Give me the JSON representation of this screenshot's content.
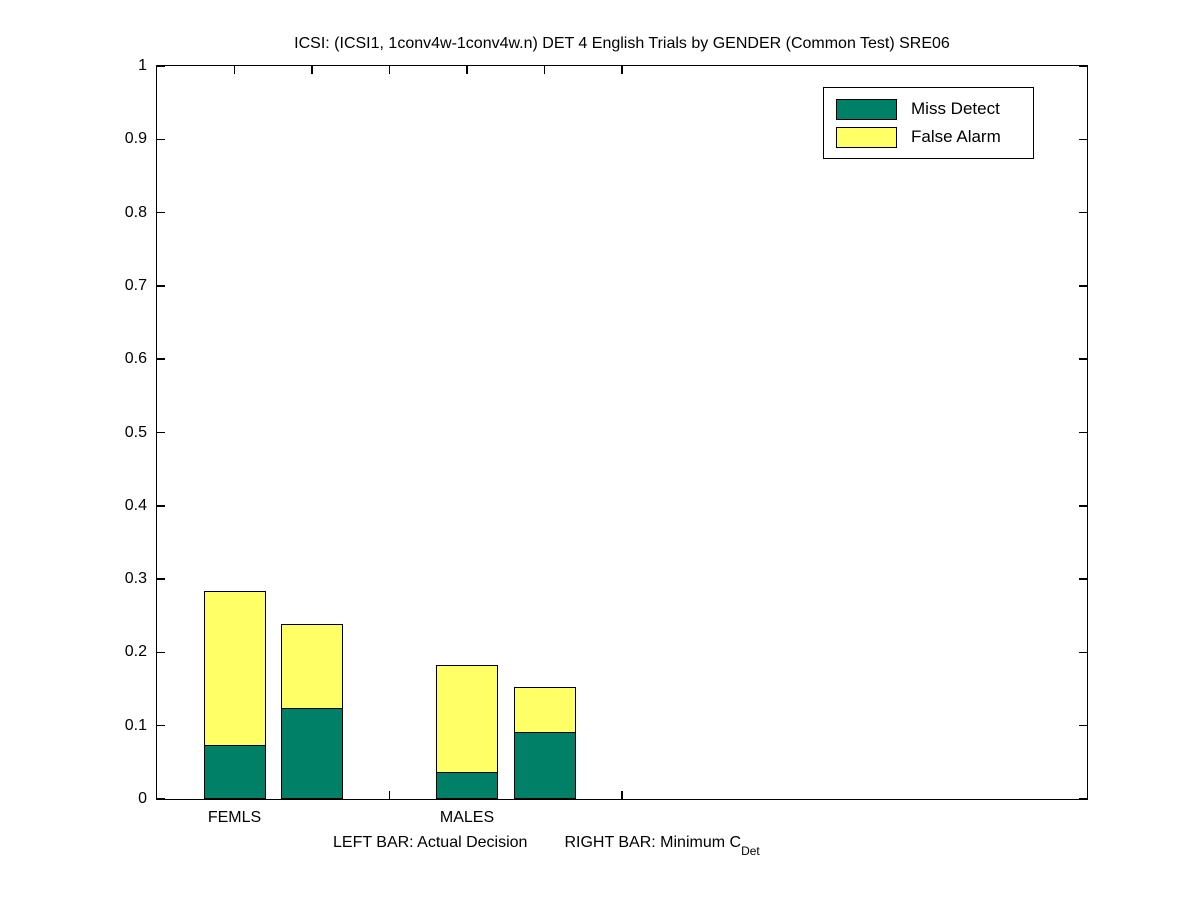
{
  "figure": {
    "title": "ICSI: (ICSI1, 1conv4w-1conv4w.n) DET 4 English Trials by GENDER (Common Test) SRE06",
    "background": "#ffffff"
  },
  "legend": {
    "position": "upper-right",
    "items": [
      {
        "label": "Miss Detect",
        "color": "#008066"
      },
      {
        "label": "False Alarm",
        "color": "#ffff66"
      }
    ]
  },
  "footnote": {
    "left_bar_text": "LEFT BAR: Actual Decision",
    "right_bar_text": "RIGHT BAR: Minimum C",
    "right_bar_subscript": "Det"
  },
  "chart_data": {
    "type": "bar",
    "stacked": true,
    "title": "ICSI: (ICSI1, 1conv4w-1conv4w.n) DET 4 English Trials by GENDER (Common Test) SRE06",
    "categories": [
      "FEMLS",
      "MALES"
    ],
    "bar_meaning": "left bar of each pair = Actual Decision, right bar = Minimum C_Det",
    "bars": [
      {
        "group": "FEMLS",
        "kind": "Actual Decision",
        "x": 1,
        "miss_detect": 0.073,
        "false_alarm": 0.211,
        "total": 0.284
      },
      {
        "group": "FEMLS",
        "kind": "Minimum C_Det",
        "x": 2,
        "miss_detect": 0.123,
        "false_alarm": 0.116,
        "total": 0.239
      },
      {
        "group": "MALES",
        "kind": "Actual Decision",
        "x": 4,
        "miss_detect": 0.036,
        "false_alarm": 0.147,
        "total": 0.183
      },
      {
        "group": "MALES",
        "kind": "Minimum C_Det",
        "x": 5,
        "miss_detect": 0.09,
        "false_alarm": 0.063,
        "total": 0.153
      }
    ],
    "series": [
      {
        "name": "Miss Detect",
        "color": "#008066",
        "values": [
          0.073,
          0.123,
          0.036,
          0.09
        ]
      },
      {
        "name": "False Alarm",
        "color": "#ffff66",
        "values": [
          0.211,
          0.116,
          0.147,
          0.063
        ]
      }
    ],
    "bar_width": 0.8,
    "xlim": [
      0,
      12
    ],
    "ylim": [
      0,
      1
    ],
    "xticks": [
      1,
      2,
      3,
      4,
      5,
      6
    ],
    "xtick_labels": [
      {
        "x": 1,
        "label": "FEMLS"
      },
      {
        "x": 4,
        "label": "MALES"
      }
    ],
    "yticks": [
      0,
      0.1,
      0.2,
      0.3,
      0.4,
      0.5,
      0.6,
      0.7,
      0.8,
      0.9,
      1
    ],
    "ytick_labels": [
      "0",
      "0.1",
      "0.2",
      "0.3",
      "0.4",
      "0.5",
      "0.6",
      "0.7",
      "0.8",
      "0.9",
      "1"
    ],
    "grid": false,
    "legend_position": "upper right",
    "axis_color": "#000000"
  }
}
